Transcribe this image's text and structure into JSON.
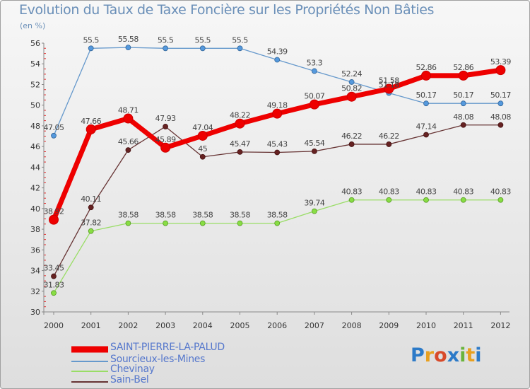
{
  "title": "Evolution du Taux de Taxe Foncière sur les Propriétés Non Bâties",
  "unit_label": "(en %)",
  "brand": {
    "letters": [
      "P",
      "r",
      "o",
      "x",
      "i",
      "t",
      "i"
    ],
    "colors": [
      "#2c7ac8",
      "#e8a020",
      "#d84a2a",
      "#2c7ac8",
      "#6ab43c",
      "#e8a020",
      "#2c7ac8"
    ]
  },
  "chart_data": {
    "type": "line",
    "title": "Evolution du Taux de Taxe Foncière sur les Propriétés Non Bâties",
    "ylabel": "(en %)",
    "xlabel": "",
    "x": [
      "2000",
      "2001",
      "2002",
      "2003",
      "2004",
      "2005",
      "2006",
      "2007",
      "2008",
      "2009",
      "2010",
      "2011",
      "2012"
    ],
    "ylim": [
      30,
      56
    ],
    "yticks": [
      30,
      32,
      34,
      36,
      38,
      40,
      42,
      44,
      46,
      48,
      50,
      52,
      54,
      56
    ],
    "grid": "none",
    "legend_position": "bottom-left",
    "series": [
      {
        "name": "SAINT-PIERRE-LA-PALUD",
        "color": "#ee0000",
        "values": [
          38.92,
          47.66,
          48.71,
          45.89,
          47.04,
          48.22,
          49.18,
          50.07,
          50.82,
          51.58,
          52.86,
          52.86,
          53.39
        ],
        "labels": [
          "38.92",
          "47.66",
          "48.71",
          "45.89",
          "47.04",
          "48.22",
          "49.18",
          "50.07",
          "50.82",
          "51.58",
          "52.86",
          "52.86",
          "53.39"
        ]
      },
      {
        "name": "Sourcieux-les-Mines",
        "color": "#6699cc",
        "values": [
          47.05,
          55.5,
          55.58,
          55.5,
          55.5,
          55.5,
          54.39,
          53.3,
          52.24,
          51.18,
          50.17,
          50.17,
          50.17
        ],
        "labels": [
          "47.05",
          "55.5",
          "55.58",
          "55.5",
          "55.5",
          "55.5",
          "54.39",
          "53.3",
          "52.24",
          "51.18",
          "50.17",
          "50.17",
          "50.17"
        ]
      },
      {
        "name": "Chevinay",
        "color": "#99dd66",
        "values": [
          31.83,
          37.82,
          38.58,
          38.58,
          38.58,
          38.58,
          38.58,
          39.74,
          40.83,
          40.83,
          40.83,
          40.83,
          40.83
        ],
        "labels": [
          "31.83",
          "37.82",
          "38.58",
          "38.58",
          "38.58",
          "38.58",
          "38.58",
          "39.74",
          "40.83",
          "40.83",
          "40.83",
          "40.83",
          "40.83"
        ]
      },
      {
        "name": "Sain-Bel",
        "color": "#663333",
        "values": [
          33.45,
          40.11,
          45.66,
          47.93,
          45.0,
          45.47,
          45.43,
          45.54,
          46.22,
          46.22,
          47.14,
          48.08,
          48.08
        ],
        "labels": [
          "33.45",
          "40.11",
          "45.66",
          "47.93",
          "45",
          "45.47",
          "45.43",
          "45.54",
          "46.22",
          "46.22",
          "47.14",
          "48.08",
          "48.08"
        ]
      }
    ]
  }
}
